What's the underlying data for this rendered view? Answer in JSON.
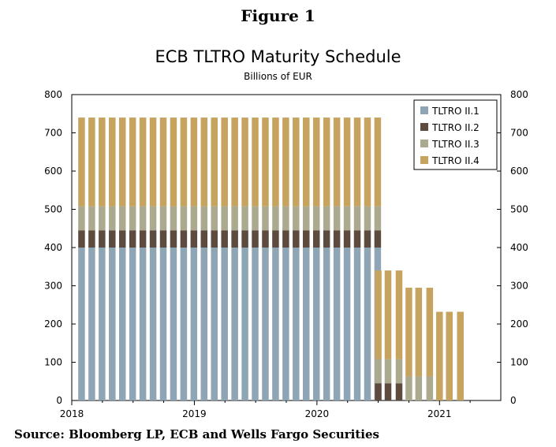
{
  "figure_label": "Figure 1",
  "source": "Source: Bloomberg LP, ECB and Wells Fargo Securities",
  "colors": {
    "TLTRO II.1": "#8ea5b6",
    "TLTRO II.2": "#5c4b3e",
    "TLTRO II.3": "#acaa8e",
    "TLTRO II.4": "#c6a35e"
  },
  "chart_data": {
    "type": "bar",
    "stacked": true,
    "title": "ECB TLTRO Maturity Schedule",
    "subtitle": "Billions of EUR",
    "ylim": [
      0,
      800
    ],
    "yticks": [
      0,
      100,
      200,
      300,
      400,
      500,
      600,
      700,
      800
    ],
    "xlim": [
      2018.0,
      2021.5
    ],
    "xticks": [
      2018,
      2019,
      2020,
      2021
    ],
    "legend_position": "top-right",
    "grid": false,
    "bar_count": 30,
    "bar_start": 2018.08,
    "bar_step": 0.0833,
    "series": [
      {
        "name": "TLTRO II.1",
        "values": [
          400,
          400,
          400,
          400,
          400,
          400,
          400,
          400,
          400,
          400,
          400,
          400,
          400,
          400,
          400,
          400,
          400,
          400,
          400,
          400,
          400,
          400,
          400,
          400,
          400,
          400,
          400,
          400,
          400,
          400
        ]
      },
      {
        "name": "TLTRO II.2",
        "values": [
          45,
          45,
          45,
          45,
          45,
          45,
          45,
          45,
          45,
          45,
          45,
          45,
          45,
          45,
          45,
          45,
          45,
          45,
          45,
          45,
          45,
          45,
          45,
          45,
          45,
          45,
          45,
          45,
          45,
          45
        ]
      },
      {
        "name": "TLTRO II.3",
        "values": [
          63,
          63,
          63,
          63,
          63,
          63,
          63,
          63,
          63,
          63,
          63,
          63,
          63,
          63,
          63,
          63,
          63,
          63,
          63,
          63,
          63,
          63,
          63,
          63,
          63,
          63,
          63,
          63,
          63,
          63
        ]
      },
      {
        "name": "TLTRO II.4",
        "values": [
          232,
          232,
          232,
          232,
          232,
          232,
          232,
          232,
          232,
          232,
          232,
          232,
          232,
          232,
          232,
          232,
          232,
          232,
          232,
          232,
          232,
          232,
          232,
          232,
          232,
          232,
          232,
          232,
          232,
          232
        ]
      }
    ],
    "series_tail": [
      {
        "x": 2020.5,
        "values": [
          0,
          45,
          63,
          232
        ]
      },
      {
        "x": 2020.58,
        "values": [
          0,
          45,
          63,
          232
        ]
      },
      {
        "x": 2020.67,
        "values": [
          0,
          45,
          63,
          232
        ]
      },
      {
        "x": 2020.75,
        "values": [
          0,
          0,
          63,
          232
        ]
      },
      {
        "x": 2020.83,
        "values": [
          0,
          0,
          63,
          232
        ]
      },
      {
        "x": 2020.92,
        "values": [
          0,
          0,
          63,
          232
        ]
      },
      {
        "x": 2021.0,
        "values": [
          0,
          0,
          0,
          232
        ]
      },
      {
        "x": 2021.08,
        "values": [
          0,
          0,
          0,
          232
        ]
      },
      {
        "x": 2021.17,
        "values": [
          0,
          0,
          0,
          232
        ]
      }
    ]
  }
}
